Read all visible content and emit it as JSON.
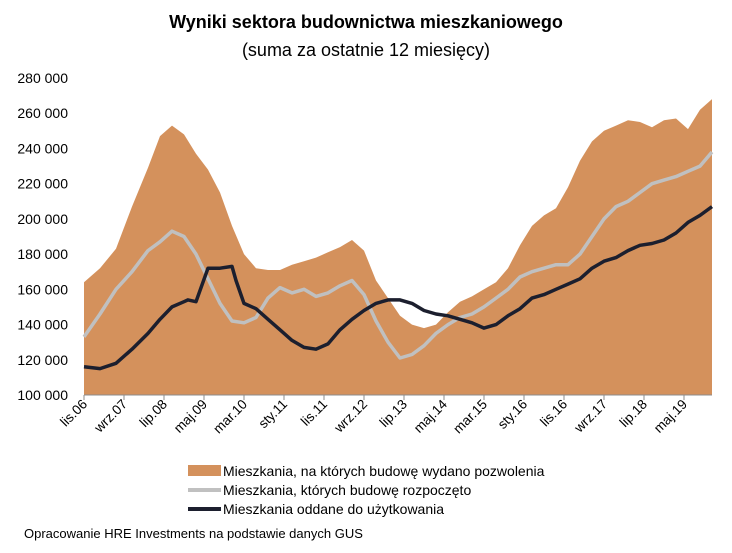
{
  "title": "Wyniki sektora budownictwa mieszkaniowego",
  "subtitle": "(suma za ostatnie 12 miesięcy)",
  "source": "Opracowanie HRE Investments na podstawie danych GUS",
  "colors": {
    "permits": "#d4915c",
    "started": "#c0c0c0",
    "completed": "#1c1f2e"
  },
  "chart_data": {
    "type": "area",
    "title": "Wyniki sektora budownictwa mieszkaniowego",
    "subtitle": "(suma za ostatnie 12 miesięcy)",
    "ylim": [
      100000,
      280000
    ],
    "yticks": [
      100000,
      120000,
      140000,
      160000,
      180000,
      200000,
      220000,
      240000,
      260000,
      280000
    ],
    "ytick_labels": [
      "100 000",
      "120 000",
      "140 000",
      "160 000",
      "180 000",
      "200 000",
      "220 000",
      "240 000",
      "260 000",
      "280 000"
    ],
    "xlim": [
      "2006-11",
      "2019-12"
    ],
    "xticks": [
      "2006-11",
      "2007-09",
      "2008-07",
      "2009-05",
      "2010-03",
      "2011-01",
      "2011-11",
      "2012-09",
      "2013-07",
      "2014-05",
      "2015-03",
      "2016-01",
      "2016-11",
      "2017-09",
      "2018-07",
      "2019-05"
    ],
    "xtick_labels": [
      "lis.06",
      "wrz.07",
      "lip.08",
      "maj.09",
      "mar.10",
      "sty.11",
      "lis.11",
      "wrz.12",
      "lip.13",
      "maj.14",
      "mar.15",
      "sty.16",
      "lis.16",
      "wrz.17",
      "lip.18",
      "maj.19"
    ],
    "grid": false,
    "legend_position": "bottom",
    "series": [
      {
        "name": "Mieszkania, na których budowę wydano pozwolenia",
        "type": "area",
        "color": "#d4915c",
        "x": [
          "2006-11",
          "2007-03",
          "2007-07",
          "2007-11",
          "2008-03",
          "2008-06",
          "2008-09",
          "2008-12",
          "2009-03",
          "2009-06",
          "2009-09",
          "2009-12",
          "2010-03",
          "2010-06",
          "2010-09",
          "2010-12",
          "2011-03",
          "2011-06",
          "2011-09",
          "2011-12",
          "2012-03",
          "2012-06",
          "2012-09",
          "2012-12",
          "2013-03",
          "2013-06",
          "2013-09",
          "2013-12",
          "2014-03",
          "2014-06",
          "2014-09",
          "2014-12",
          "2015-03",
          "2015-06",
          "2015-09",
          "2015-12",
          "2016-03",
          "2016-06",
          "2016-09",
          "2016-12",
          "2017-03",
          "2017-06",
          "2017-09",
          "2017-12",
          "2018-03",
          "2018-06",
          "2018-09",
          "2018-12",
          "2019-03",
          "2019-06",
          "2019-09",
          "2019-12"
        ],
        "y": [
          164000,
          172000,
          183000,
          207000,
          229000,
          247000,
          253000,
          248000,
          237000,
          228000,
          215000,
          196000,
          180000,
          172000,
          171000,
          171000,
          174000,
          176000,
          178000,
          181000,
          184000,
          188000,
          182000,
          165000,
          155000,
          145000,
          140000,
          138000,
          140000,
          147000,
          153000,
          156000,
          160000,
          164000,
          172000,
          185000,
          196000,
          202000,
          206000,
          218000,
          233000,
          244000,
          250000,
          253000,
          256000,
          255000,
          252000,
          256000,
          257000,
          251000,
          262000,
          268000
        ]
      },
      {
        "name": "Mieszkania, których budowę rozpoczęto",
        "type": "line",
        "color": "#c0c0c0",
        "x": [
          "2006-11",
          "2007-03",
          "2007-07",
          "2007-11",
          "2008-03",
          "2008-06",
          "2008-09",
          "2008-12",
          "2009-03",
          "2009-06",
          "2009-09",
          "2009-12",
          "2010-03",
          "2010-06",
          "2010-09",
          "2010-12",
          "2011-03",
          "2011-06",
          "2011-09",
          "2011-12",
          "2012-03",
          "2012-06",
          "2012-09",
          "2012-12",
          "2013-03",
          "2013-06",
          "2013-09",
          "2013-12",
          "2014-03",
          "2014-06",
          "2014-09",
          "2014-12",
          "2015-03",
          "2015-06",
          "2015-09",
          "2015-12",
          "2016-03",
          "2016-06",
          "2016-09",
          "2016-12",
          "2017-03",
          "2017-06",
          "2017-09",
          "2017-12",
          "2018-03",
          "2018-06",
          "2018-09",
          "2018-12",
          "2019-03",
          "2019-06",
          "2019-09",
          "2019-12"
        ],
        "y": [
          133000,
          146000,
          160000,
          170000,
          182000,
          187000,
          193000,
          190000,
          180000,
          166000,
          152000,
          142000,
          141000,
          144000,
          155000,
          161000,
          158000,
          160000,
          156000,
          158000,
          162000,
          165000,
          157000,
          142000,
          130000,
          121000,
          123000,
          128000,
          135000,
          140000,
          144000,
          146000,
          150000,
          155000,
          160000,
          167000,
          170000,
          172000,
          174000,
          174000,
          180000,
          190000,
          200000,
          207000,
          210000,
          215000,
          220000,
          222000,
          224000,
          227000,
          230000,
          238000
        ]
      },
      {
        "name": "Mieszkania oddane do użytkowania",
        "type": "line",
        "color": "#1c1f2e",
        "x": [
          "2006-11",
          "2007-03",
          "2007-07",
          "2007-11",
          "2008-03",
          "2008-06",
          "2008-09",
          "2008-12",
          "2009-01",
          "2009-03",
          "2009-06",
          "2009-09",
          "2009-12",
          "2010-01",
          "2010-03",
          "2010-06",
          "2010-09",
          "2010-12",
          "2011-03",
          "2011-06",
          "2011-09",
          "2011-12",
          "2012-03",
          "2012-06",
          "2012-09",
          "2012-12",
          "2013-03",
          "2013-06",
          "2013-09",
          "2013-12",
          "2014-03",
          "2014-06",
          "2014-09",
          "2014-12",
          "2015-03",
          "2015-06",
          "2015-09",
          "2015-12",
          "2016-03",
          "2016-06",
          "2016-09",
          "2016-12",
          "2017-03",
          "2017-06",
          "2017-09",
          "2017-12",
          "2018-03",
          "2018-06",
          "2018-09",
          "2018-12",
          "2019-03",
          "2019-06",
          "2019-09",
          "2019-12"
        ],
        "y": [
          116000,
          115000,
          118000,
          126000,
          135000,
          143000,
          150000,
          153000,
          154000,
          153000,
          172000,
          172000,
          173000,
          165000,
          152000,
          149000,
          143000,
          137000,
          131000,
          127000,
          126000,
          129000,
          137000,
          143000,
          148000,
          152000,
          154000,
          154000,
          152000,
          148000,
          146000,
          145000,
          143000,
          141000,
          138000,
          140000,
          145000,
          149000,
          155000,
          157000,
          160000,
          163000,
          166000,
          172000,
          176000,
          178000,
          182000,
          185000,
          186000,
          188000,
          192000,
          198000,
          202000,
          207000
        ]
      }
    ]
  }
}
